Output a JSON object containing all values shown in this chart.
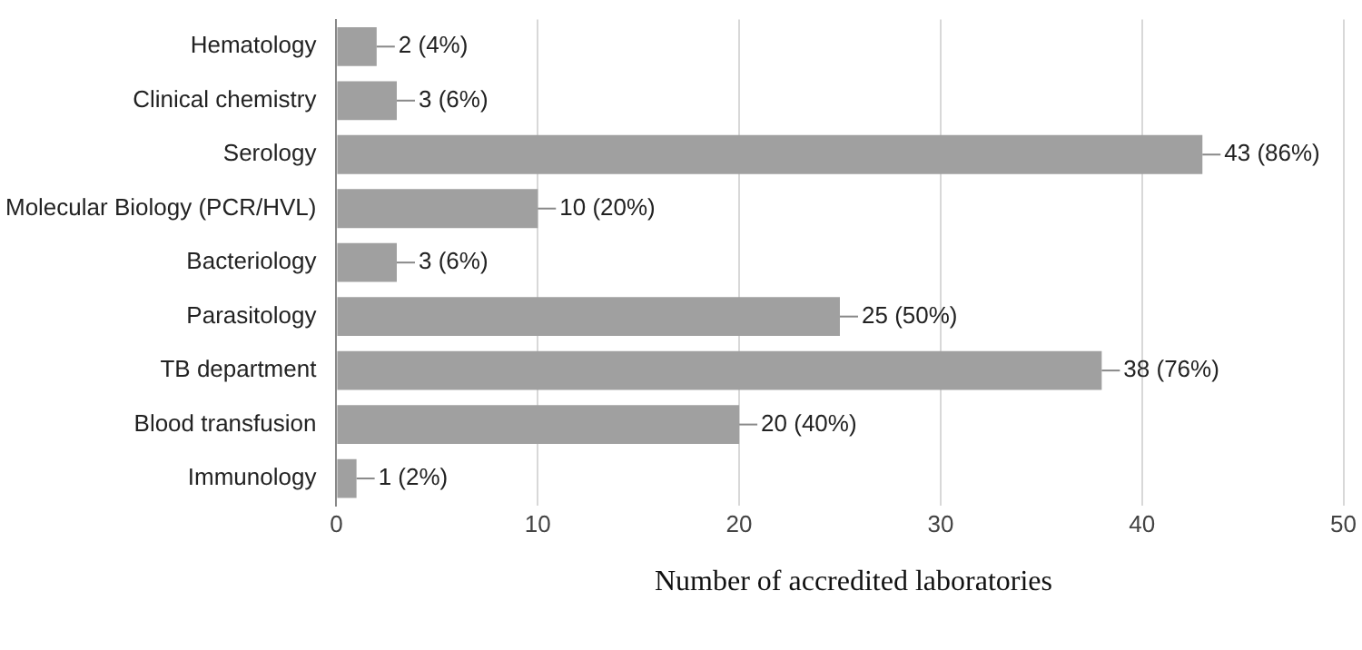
{
  "chart_data": {
    "type": "bar",
    "orientation": "horizontal",
    "xlabel": "Number of accredited laboratories",
    "categories": [
      "Hematology",
      "Clinical chemistry",
      "Serology",
      "Molecular Biology (PCR/HVL)",
      "Bacteriology",
      "Parasitology",
      "TB department",
      "Blood transfusion",
      "Immunology"
    ],
    "values": [
      2,
      3,
      43,
      10,
      3,
      25,
      38,
      20,
      1
    ],
    "value_labels": [
      "2 (4%)",
      "3 (6%)",
      "43 (86%)",
      "10 (20%)",
      "3 (6%)",
      "25 (50%)",
      "38 (76%)",
      "20 (40%)",
      "1 (2%)"
    ],
    "color": "#a0a0a0",
    "xlim": [
      0,
      50
    ],
    "xticks": [
      0,
      10,
      20,
      30,
      40,
      50
    ],
    "grid": "x",
    "legend": false
  }
}
